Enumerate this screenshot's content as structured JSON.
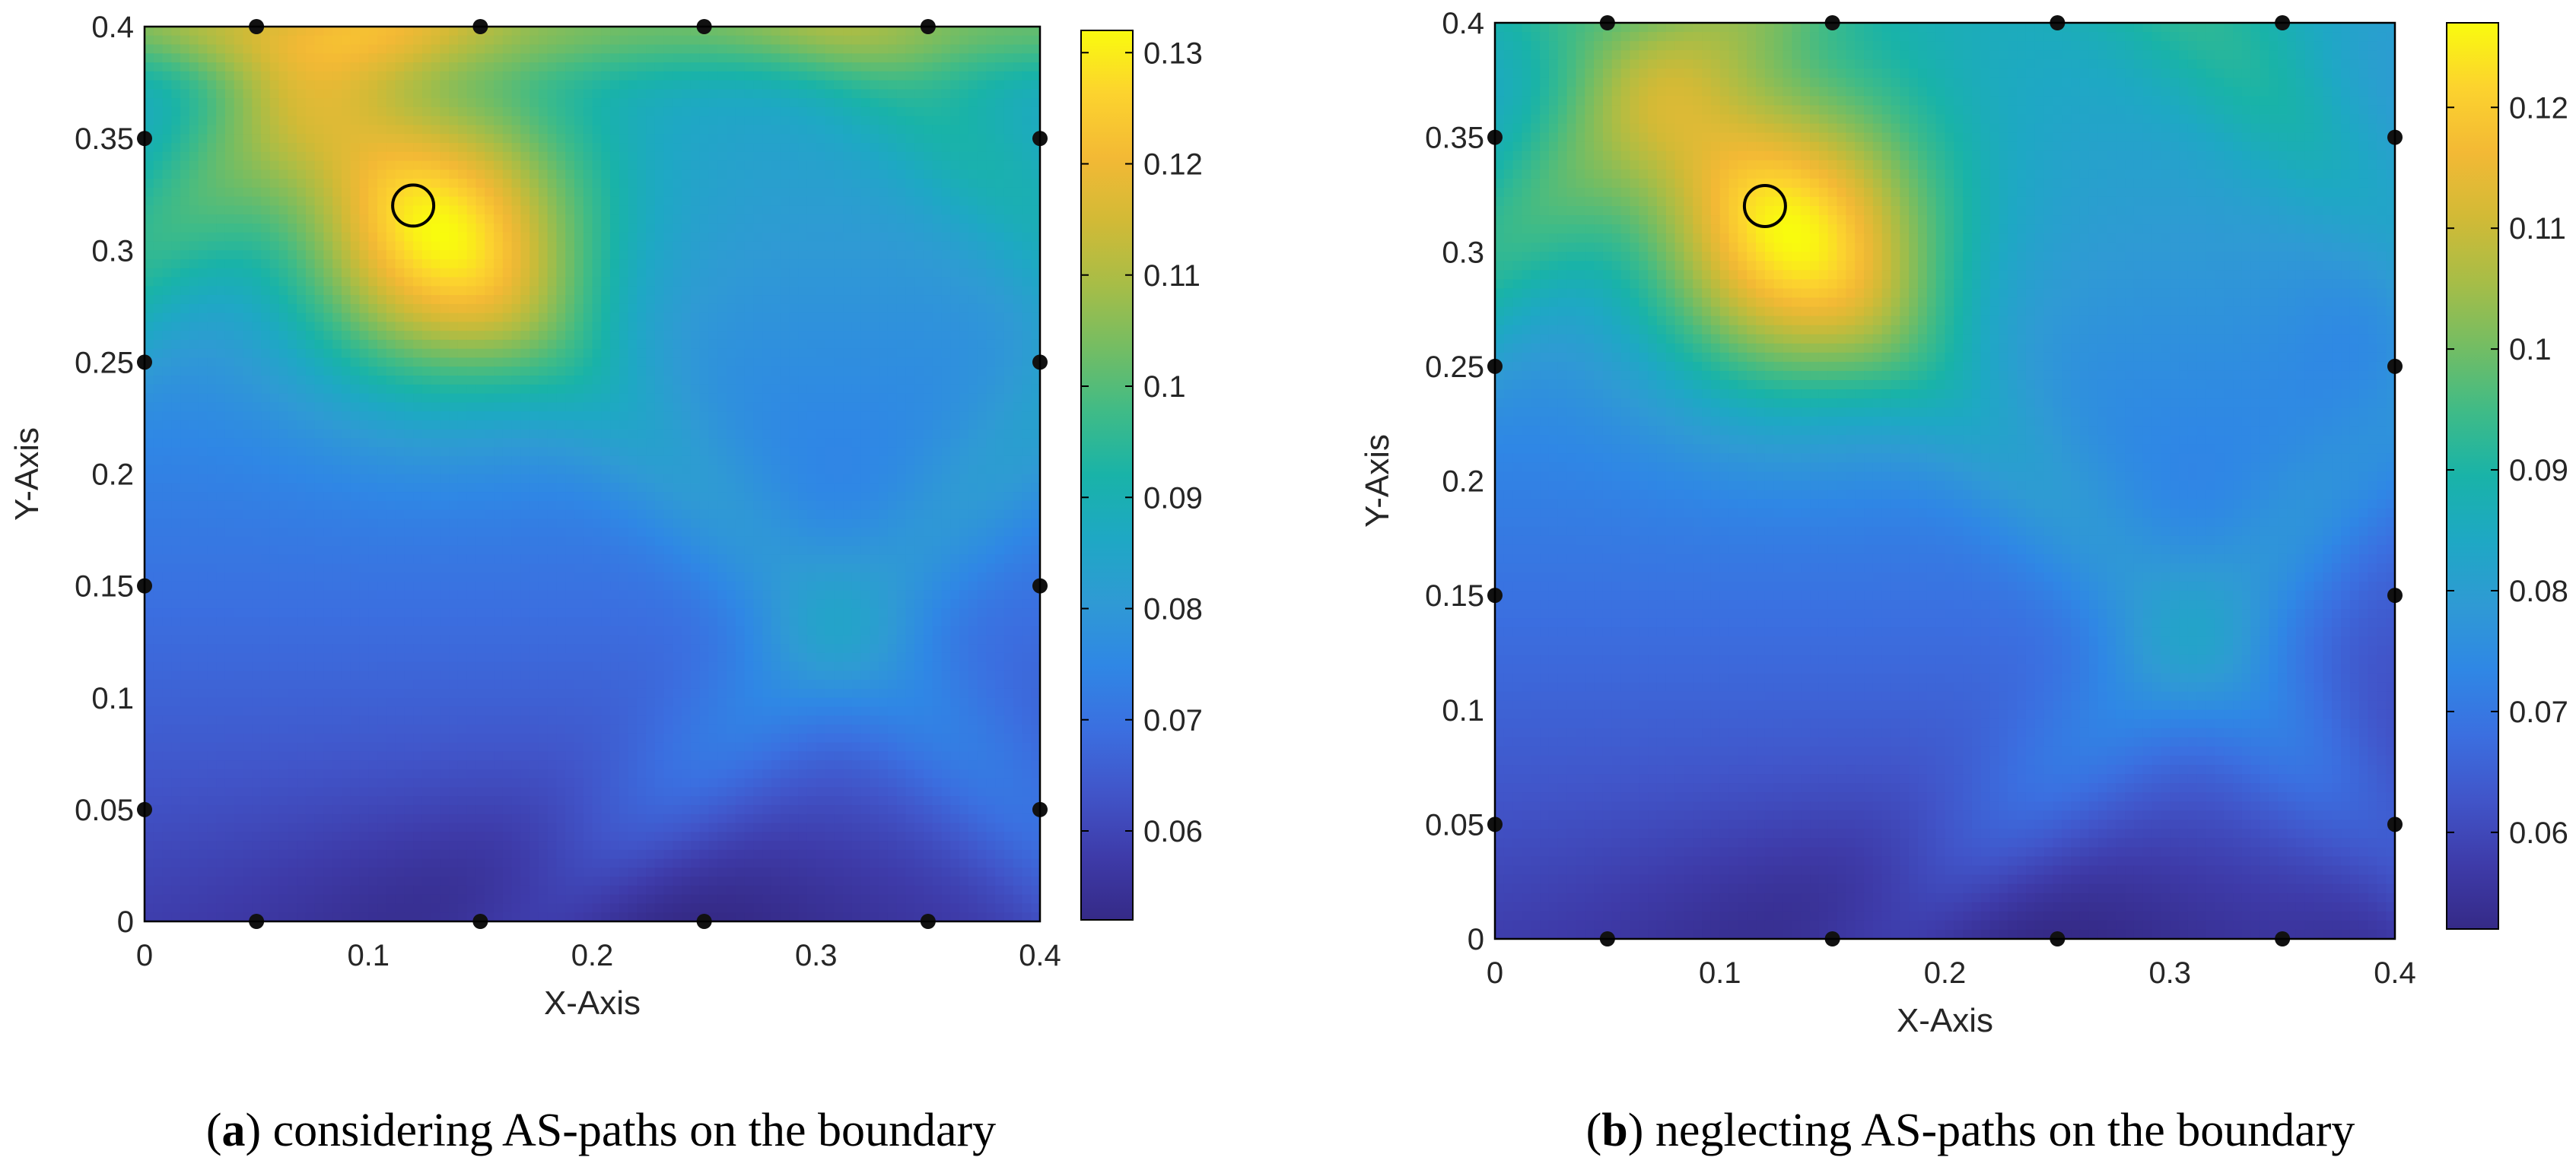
{
  "colors": {
    "parula": [
      "#352a87",
      "#3e3ba9",
      "#4155c9",
      "#3b6fe0",
      "#2f87e5",
      "#2f9ad4",
      "#1ea8c4",
      "#19b3a8",
      "#3fbb87",
      "#74bd63",
      "#a7bd47",
      "#d2ba36",
      "#f3b935",
      "#fcd32e",
      "#f9fb0e"
    ],
    "sensor": "#111111",
    "frame": "#000000"
  },
  "chart_data": [
    {
      "type": "heatmap",
      "panel": "a",
      "caption_letter": "a",
      "caption_text": "considering AS-paths on the boundary",
      "xlabel": "X-Axis",
      "ylabel": "Y-Axis",
      "xlim": [
        0,
        0.4
      ],
      "ylim": [
        0,
        0.4
      ],
      "xticks": [
        "0",
        "0.1",
        "0.2",
        "0.3",
        "0.4"
      ],
      "yticks": [
        "0",
        "0.05",
        "0.1",
        "0.15",
        "0.2",
        "0.25",
        "0.3",
        "0.35",
        "0.4"
      ],
      "colorbar": {
        "min": 0.052,
        "max": 0.132,
        "ticks": [
          "0.06",
          "0.07",
          "0.08",
          "0.09",
          "0.1",
          "0.11",
          "0.12",
          "0.13"
        ],
        "tick_values": [
          0.06,
          0.07,
          0.08,
          0.09,
          0.1,
          0.11,
          0.12,
          0.13
        ]
      },
      "target": {
        "x": 0.12,
        "y": 0.32
      },
      "peak": {
        "x": 0.13,
        "y": 0.3,
        "value": 0.132
      },
      "sensors": [
        [
          0.05,
          0.4
        ],
        [
          0.15,
          0.4
        ],
        [
          0.25,
          0.4
        ],
        [
          0.35,
          0.4
        ],
        [
          0.05,
          0
        ],
        [
          0.15,
          0
        ],
        [
          0.25,
          0
        ],
        [
          0.35,
          0
        ],
        [
          0,
          0.05
        ],
        [
          0,
          0.15
        ],
        [
          0,
          0.25
        ],
        [
          0,
          0.35
        ],
        [
          0.4,
          0.05
        ],
        [
          0.4,
          0.15
        ],
        [
          0.4,
          0.25
        ],
        [
          0.4,
          0.35
        ]
      ]
    },
    {
      "type": "heatmap",
      "panel": "b",
      "caption_letter": "b",
      "caption_text": "neglecting AS-paths on the boundary",
      "xlabel": "X-Axis",
      "ylabel": "Y-Axis",
      "xlim": [
        0,
        0.4
      ],
      "ylim": [
        0,
        0.4
      ],
      "xticks": [
        "0",
        "0.1",
        "0.2",
        "0.3",
        "0.4"
      ],
      "yticks": [
        "0",
        "0.05",
        "0.1",
        "0.15",
        "0.2",
        "0.25",
        "0.3",
        "0.35",
        "0.4"
      ],
      "colorbar": {
        "min": 0.052,
        "max": 0.127,
        "ticks": [
          "0.06",
          "0.07",
          "0.08",
          "0.09",
          "0.1",
          "0.11",
          "0.12"
        ],
        "tick_values": [
          0.06,
          0.07,
          0.08,
          0.09,
          0.1,
          0.11,
          0.12
        ]
      },
      "target": {
        "x": 0.12,
        "y": 0.32
      },
      "peak": {
        "x": 0.13,
        "y": 0.3,
        "value": 0.127
      },
      "sensors": [
        [
          0.05,
          0.4
        ],
        [
          0.15,
          0.4
        ],
        [
          0.25,
          0.4
        ],
        [
          0.35,
          0.4
        ],
        [
          0.05,
          0
        ],
        [
          0.15,
          0
        ],
        [
          0.25,
          0
        ],
        [
          0.35,
          0
        ],
        [
          0,
          0.05
        ],
        [
          0,
          0.15
        ],
        [
          0,
          0.25
        ],
        [
          0,
          0.35
        ],
        [
          0.4,
          0.05
        ],
        [
          0.4,
          0.15
        ],
        [
          0.4,
          0.25
        ],
        [
          0.4,
          0.35
        ]
      ]
    }
  ]
}
